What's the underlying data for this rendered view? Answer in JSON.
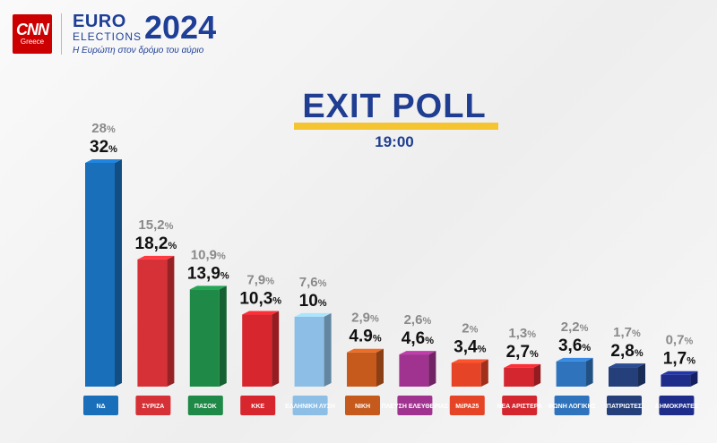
{
  "header": {
    "cnn_logo": "CNN",
    "cnn_region": "Greece",
    "euro": "EURO",
    "elections": "ELECTIONS",
    "year": "2024",
    "tagline": "Η Ευρώπη στον δρόμο του αύριο"
  },
  "title": "EXIT POLL",
  "time": "19:00",
  "colors": {
    "accent_blue": "#1f3d91",
    "accent_yellow": "#f4c531"
  },
  "chart_data": {
    "type": "bar",
    "categories": [
      "ΝΔ",
      "ΣΥΡΙΖΑ",
      "ΠΑΣΟΚ",
      "ΚΚΕ",
      "ΕΛΛΗΝΙΚΗ ΛΥΣΗ",
      "ΝΙΚΗ",
      "ΠΛΕΥΣΗ ΕΛΕΥΘΕΡΙΑΣ",
      "ΜέΡΑ25",
      "ΝΕΑ ΑΡΙΣΤΕΡΑ",
      "ΦΩΝΗ ΛΟΓΙΚΗΣ",
      "ΠΑΤΡΙΩΤΕΣ",
      "ΔΗΜΟΚΡΑΤΕΣ"
    ],
    "series": [
      {
        "values": [
          28,
          15.2,
          10.9,
          7.9,
          7.6,
          2.9,
          2.6,
          2,
          1.3,
          2.2,
          1.7,
          0.7
        ],
        "labels": [
          "28",
          "15,2",
          "10,9",
          "7,9",
          "7,6",
          "2,9",
          "2,6",
          "2",
          "1,3",
          "2,2",
          "1,7",
          "0,7"
        ]
      },
      {
        "values": [
          32,
          18.2,
          13.9,
          10.3,
          10,
          4.9,
          4.6,
          3.4,
          2.7,
          3.6,
          2.8,
          1.7
        ],
        "labels": [
          "32",
          "18,2",
          "13,9",
          "10,3",
          "10",
          "4.9",
          "4,6",
          "3,4",
          "2,7",
          "3,6",
          "2,8",
          "1,7"
        ]
      }
    ],
    "unit": "%",
    "bar_colors": [
      "#1a6fba",
      "#d63136",
      "#1f8a47",
      "#d8262e",
      "#8dbfe6",
      "#c65a1d",
      "#a0338f",
      "#e54526",
      "#d3262e",
      "#2f73bd",
      "#243f7a",
      "#1e2c8a"
    ],
    "logo_colors": [
      "#1a6fba",
      "#d63136",
      "#1f8a47",
      "#d8262e",
      "#8dbfe6",
      "#c65a1d",
      "#a0338f",
      "#e54526",
      "#d3262e",
      "#2f73bd",
      "#243f7a",
      "#1e2c8a"
    ],
    "ylim": [
      0,
      32
    ],
    "grid": false
  }
}
